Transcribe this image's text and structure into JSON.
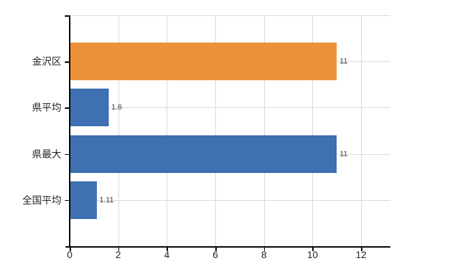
{
  "chart_data": {
    "type": "bar",
    "orientation": "horizontal",
    "title": "",
    "xlabel": "",
    "ylabel": "",
    "categories": [
      "金沢区",
      "県平均",
      "県最大",
      "全国平均"
    ],
    "values": [
      11,
      1.6,
      11,
      1.11
    ],
    "value_labels": [
      "11",
      "1.6",
      "11",
      "1.11"
    ],
    "series": [
      {
        "name": "",
        "values": [
          11,
          1.6,
          11,
          1.11
        ]
      }
    ],
    "x_ticks": [
      0,
      2,
      4,
      6,
      8,
      10,
      12
    ],
    "x_tick_labels": [
      "0",
      "2",
      "4",
      "6",
      "8",
      "10",
      "12"
    ],
    "xlim": [
      0,
      13.2
    ],
    "grid": true,
    "legend": false,
    "bar_colors": [
      "#ED9138",
      "#3E70B2",
      "#3E70B2",
      "#3E70B2"
    ]
  },
  "colors": {
    "orange_bar": "#ED9138",
    "blue_bar": "#3E70B2",
    "gridline": "#D9D9D9",
    "axis": "#000000",
    "tick_label": "#222222",
    "category_label": "#222222",
    "value_label": "#3A3A3A",
    "background": "#FFFFFF"
  }
}
